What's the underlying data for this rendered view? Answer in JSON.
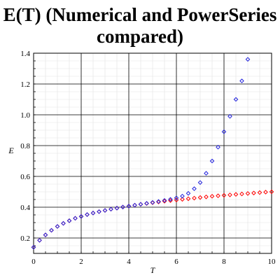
{
  "chart_data": {
    "type": "scatter",
    "title_line1": "E(T) (Numerical and PowerSeries",
    "title_line2": "compared)",
    "xlabel": "T",
    "ylabel": "E",
    "xlim": [
      0,
      10
    ],
    "ylim": [
      0.1,
      1.4
    ],
    "xticks": [
      0,
      2,
      4,
      6,
      8,
      10
    ],
    "yticks": [
      0.2,
      0.4,
      0.6,
      0.8,
      1.0,
      1.2,
      1.4
    ],
    "ytick_labels": [
      "0.2",
      "0.4",
      "0.6",
      "0.8",
      "1.0",
      "1.2",
      "1.4"
    ],
    "grid": true,
    "series": [
      {
        "color": "#ff0000",
        "marker": "diamond",
        "x": [
          0,
          0.25,
          0.5,
          0.75,
          1,
          1.25,
          1.5,
          1.75,
          2,
          2.25,
          2.5,
          2.75,
          3,
          3.25,
          3.5,
          3.75,
          4,
          4.25,
          4.5,
          4.75,
          5,
          5.25,
          5.5,
          5.75,
          6,
          6.25,
          6.5,
          6.75,
          7,
          7.25,
          7.5,
          7.75,
          8,
          8.25,
          8.5,
          8.75,
          9,
          9.25,
          9.5,
          9.75,
          10
        ],
        "y": [
          0.14,
          0.185,
          0.22,
          0.25,
          0.275,
          0.295,
          0.312,
          0.328,
          0.34,
          0.352,
          0.362,
          0.371,
          0.379,
          0.387,
          0.394,
          0.401,
          0.407,
          0.413,
          0.419,
          0.424,
          0.429,
          0.434,
          0.439,
          0.443,
          0.447,
          0.451,
          0.455,
          0.459,
          0.463,
          0.467,
          0.471,
          0.474,
          0.477,
          0.48,
          0.483,
          0.486,
          0.489,
          0.492,
          0.495,
          0.498,
          0.5
        ]
      },
      {
        "color": "#2222dd",
        "marker": "diamond",
        "x": [
          0,
          0.25,
          0.5,
          0.75,
          1,
          1.25,
          1.5,
          1.75,
          2,
          2.25,
          2.5,
          2.75,
          3,
          3.25,
          3.5,
          3.75,
          4,
          4.25,
          4.5,
          4.75,
          5,
          5.25,
          5.5,
          5.75,
          6,
          6.25,
          6.5,
          6.75,
          7,
          7.25,
          7.5,
          7.75,
          8,
          8.25,
          8.5,
          8.75,
          9
        ],
        "y": [
          0.14,
          0.185,
          0.22,
          0.25,
          0.275,
          0.295,
          0.312,
          0.328,
          0.34,
          0.352,
          0.362,
          0.371,
          0.379,
          0.387,
          0.394,
          0.401,
          0.407,
          0.413,
          0.419,
          0.425,
          0.431,
          0.437,
          0.444,
          0.451,
          0.46,
          0.472,
          0.49,
          0.52,
          0.56,
          0.62,
          0.7,
          0.79,
          0.89,
          0.99,
          1.1,
          1.22,
          1.36
        ]
      }
    ]
  }
}
